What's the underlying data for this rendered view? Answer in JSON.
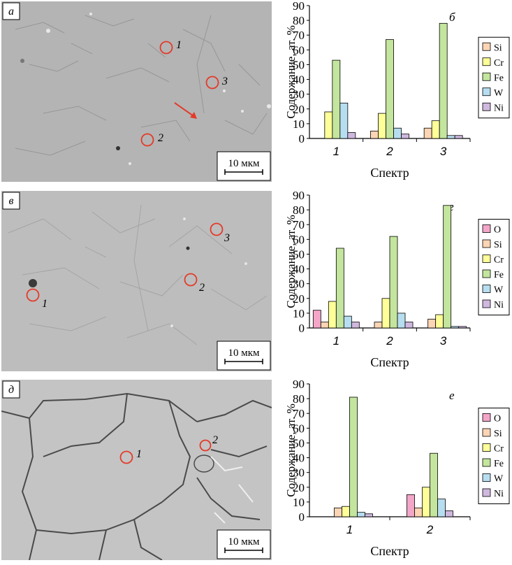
{
  "panels": [
    {
      "micro": {
        "label": "а",
        "scale_bar": "10 мкм",
        "markers": [
          "1",
          "2",
          "3"
        ]
      },
      "chart": {
        "type": "bar",
        "panel_label": "б",
        "ylabel": "Содержание, ат. %",
        "xlabel": "Спектр",
        "ylim": [
          0,
          90
        ],
        "yticks": [
          "0",
          "10",
          "20",
          "30",
          "40",
          "50",
          "60",
          "70",
          "80",
          "90"
        ],
        "categories": [
          "1",
          "2",
          "3"
        ],
        "series": [
          {
            "name": "Si",
            "color": "#fcd5b4",
            "values": [
              0,
              5,
              7
            ]
          },
          {
            "name": "Cr",
            "color": "#ffff99",
            "values": [
              18,
              17,
              12
            ]
          },
          {
            "name": "Fe",
            "color": "#c4e59d",
            "values": [
              53,
              67,
              78
            ]
          },
          {
            "name": "W",
            "color": "#b7def0",
            "values": [
              24,
              7,
              2
            ]
          },
          {
            "name": "Ni",
            "color": "#cfb8de",
            "values": [
              4,
              3,
              2
            ]
          }
        ]
      }
    },
    {
      "micro": {
        "label": "в",
        "scale_bar": "10 мкм",
        "markers": [
          "1",
          "2",
          "3"
        ]
      },
      "chart": {
        "type": "bar",
        "panel_label": "г",
        "ylabel": "Содержание, ат. %",
        "xlabel": "Спектр",
        "ylim": [
          0,
          90
        ],
        "yticks": [
          "0",
          "10",
          "20",
          "30",
          "40",
          "50",
          "60",
          "70",
          "80",
          "90"
        ],
        "categories": [
          "1",
          "2",
          "3"
        ],
        "series": [
          {
            "name": "O",
            "color": "#f4a6c8",
            "values": [
              12,
              0,
              0
            ]
          },
          {
            "name": "Si",
            "color": "#fcd5b4",
            "values": [
              4,
              4,
              6
            ]
          },
          {
            "name": "Cr",
            "color": "#ffff99",
            "values": [
              18,
              20,
              9
            ]
          },
          {
            "name": "Fe",
            "color": "#c4e59d",
            "values": [
              54,
              62,
              83
            ]
          },
          {
            "name": "W",
            "color": "#b7def0",
            "values": [
              8,
              10,
              1
            ]
          },
          {
            "name": "Ni",
            "color": "#cfb8de",
            "values": [
              4,
              4,
              1
            ]
          }
        ]
      }
    },
    {
      "micro": {
        "label": "д",
        "scale_bar": "10 мкм",
        "markers": [
          "1",
          "2"
        ]
      },
      "chart": {
        "type": "bar",
        "panel_label": "е",
        "ylabel": "Содержание, ат. %",
        "xlabel": "Спектр",
        "ylim": [
          0,
          90
        ],
        "yticks": [
          "0",
          "10",
          "20",
          "30",
          "40",
          "50",
          "60",
          "70",
          "80",
          "90"
        ],
        "categories": [
          "1",
          "2"
        ],
        "series": [
          {
            "name": "O",
            "color": "#f4a6c8",
            "values": [
              0,
              15
            ]
          },
          {
            "name": "Si",
            "color": "#fcd5b4",
            "values": [
              6,
              6
            ]
          },
          {
            "name": "Cr",
            "color": "#ffff99",
            "values": [
              7,
              20
            ]
          },
          {
            "name": "Fe",
            "color": "#c4e59d",
            "values": [
              81,
              43
            ]
          },
          {
            "name": "W",
            "color": "#b7def0",
            "values": [
              3,
              12
            ]
          },
          {
            "name": "Ni",
            "color": "#cfb8de",
            "values": [
              2,
              4
            ]
          }
        ]
      }
    }
  ],
  "chart_data": [
    {
      "type": "bar",
      "panel_label": "б",
      "ylabel": "Содержание, ат. %",
      "xlabel": "Спектр",
      "ylim": [
        0,
        90
      ],
      "categories": [
        "1",
        "2",
        "3"
      ],
      "series": [
        {
          "name": "Si",
          "values": [
            0,
            5,
            7
          ]
        },
        {
          "name": "Cr",
          "values": [
            18,
            17,
            12
          ]
        },
        {
          "name": "Fe",
          "values": [
            53,
            67,
            78
          ]
        },
        {
          "name": "W",
          "values": [
            24,
            7,
            2
          ]
        },
        {
          "name": "Ni",
          "values": [
            4,
            3,
            2
          ]
        }
      ],
      "legend": "right"
    },
    {
      "type": "bar",
      "panel_label": "г",
      "ylabel": "Содержание, ат. %",
      "xlabel": "Спектр",
      "ylim": [
        0,
        90
      ],
      "categories": [
        "1",
        "2",
        "3"
      ],
      "series": [
        {
          "name": "O",
          "values": [
            12,
            0,
            0
          ]
        },
        {
          "name": "Si",
          "values": [
            4,
            4,
            6
          ]
        },
        {
          "name": "Cr",
          "values": [
            18,
            20,
            9
          ]
        },
        {
          "name": "Fe",
          "values": [
            54,
            62,
            83
          ]
        },
        {
          "name": "W",
          "values": [
            8,
            10,
            1
          ]
        },
        {
          "name": "Ni",
          "values": [
            4,
            4,
            1
          ]
        }
      ],
      "legend": "right"
    },
    {
      "type": "bar",
      "panel_label": "е",
      "ylabel": "Содержание, ат. %",
      "xlabel": "Спектр",
      "ylim": [
        0,
        90
      ],
      "categories": [
        "1",
        "2"
      ],
      "series": [
        {
          "name": "O",
          "values": [
            0,
            15
          ]
        },
        {
          "name": "Si",
          "values": [
            6,
            6
          ]
        },
        {
          "name": "Cr",
          "values": [
            7,
            20
          ]
        },
        {
          "name": "Fe",
          "values": [
            81,
            43
          ]
        },
        {
          "name": "W",
          "values": [
            3,
            12
          ]
        },
        {
          "name": "Ni",
          "values": [
            2,
            4
          ]
        }
      ],
      "legend": "right"
    }
  ]
}
